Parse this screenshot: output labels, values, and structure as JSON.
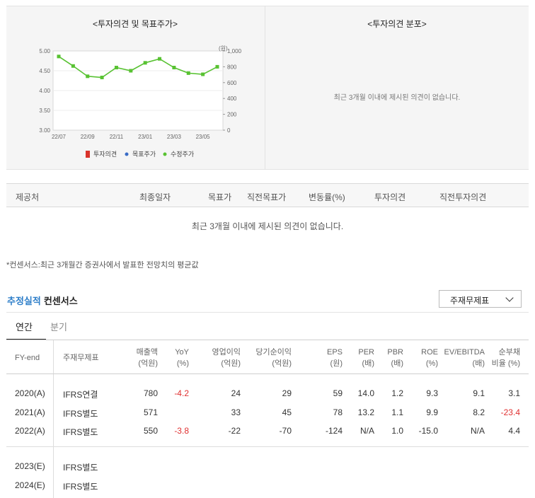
{
  "chart_panel": {
    "title": "<투자의견 및 목표주가>",
    "unit_label": "(원)",
    "legend": [
      {
        "label": "투자의견",
        "color": "#d9342b"
      },
      {
        "label": "목표주가",
        "color": "#3a6cc6"
      },
      {
        "label": "수정주가",
        "color": "#58c232"
      }
    ],
    "chart_data": {
      "type": "line",
      "x": [
        "22/07",
        "22/08",
        "22/09",
        "22/10",
        "22/11",
        "22/12",
        "23/01",
        "23/02",
        "23/03",
        "23/04",
        "23/05",
        "23/06"
      ],
      "x_tick_labels": [
        "22/07",
        "22/09",
        "22/11",
        "23/01",
        "23/03",
        "23/05"
      ],
      "left_axis": {
        "ticks": [
          "5.00",
          "4.50",
          "4.00",
          "3.50",
          "3.00"
        ],
        "range": [
          3.0,
          5.0
        ]
      },
      "right_axis": {
        "ticks": [
          "1,000",
          "800",
          "600",
          "400",
          "200",
          "0"
        ],
        "range": [
          0,
          1000
        ]
      },
      "series": [
        {
          "name": "수정주가",
          "axis": "right",
          "color": "#58c232",
          "values": [
            930,
            810,
            680,
            665,
            790,
            750,
            850,
            900,
            790,
            720,
            705,
            800
          ]
        }
      ]
    }
  },
  "dist_panel": {
    "title": "<투자의견 분포>",
    "empty_message": "최근 3개월 이내에 제시된 의견이 없습니다."
  },
  "opinion_table": {
    "headers": [
      "제공처",
      "최종일자",
      "목표가",
      "직전목표가",
      "변동률(%)",
      "투자의견",
      "직전투자의견"
    ],
    "empty_message": "최근 3개월 이내에 제시된 의견이 없습니다."
  },
  "footnote": "*컨센서스:최근 3개월간 증권사에서 발표한 전망치의 평균값",
  "section": {
    "title_accent": "추정실적",
    "title_rest": "컨센서스",
    "dropdown_value": "주재무제표"
  },
  "tabs": {
    "annual": "연간",
    "quarter": "분기"
  },
  "est_table": {
    "headers": [
      {
        "l1": "FY-end",
        "l2": ""
      },
      {
        "l1": "주재무제표",
        "l2": ""
      },
      {
        "l1": "매출액",
        "l2": "(억원)"
      },
      {
        "l1": "YoY",
        "l2": "(%)"
      },
      {
        "l1": "영업이익",
        "l2": "(억원)"
      },
      {
        "l1": "당기순이익",
        "l2": "(억원)"
      },
      {
        "l1": "EPS",
        "l2": "(원)"
      },
      {
        "l1": "PER",
        "l2": "(배)"
      },
      {
        "l1": "PBR",
        "l2": "(배)"
      },
      {
        "l1": "ROE",
        "l2": "(%)"
      },
      {
        "l1": "EV/EBITDA",
        "l2": "(배)"
      },
      {
        "l1": "순부채",
        "l2": "비율 (%)"
      }
    ],
    "rows": [
      {
        "fy": "2020(A)",
        "basis": "IFRS연결",
        "sales": "780",
        "yoy": "-4.2",
        "op": "24",
        "net": "29",
        "eps": "59",
        "per": "14.0",
        "pbr": "1.2",
        "roe": "9.3",
        "ev": "9.1",
        "debt": "3.1"
      },
      {
        "fy": "2021(A)",
        "basis": "IFRS별도",
        "sales": "571",
        "yoy": "",
        "op": "33",
        "net": "45",
        "eps": "78",
        "per": "13.2",
        "pbr": "1.1",
        "roe": "9.9",
        "ev": "8.2",
        "debt": "-23.4"
      },
      {
        "fy": "2022(A)",
        "basis": "IFRS별도",
        "sales": "550",
        "yoy": "-3.8",
        "op": "-22",
        "net": "-70",
        "eps": "-124",
        "per": "N/A",
        "pbr": "1.0",
        "roe": "-15.0",
        "ev": "N/A",
        "debt": "4.4"
      },
      {
        "fy": "2023(E)",
        "basis": "IFRS별도",
        "sales": "",
        "yoy": "",
        "op": "",
        "net": "",
        "eps": "",
        "per": "",
        "pbr": "",
        "roe": "",
        "ev": "",
        "debt": ""
      },
      {
        "fy": "2024(E)",
        "basis": "IFRS별도",
        "sales": "",
        "yoy": "",
        "op": "",
        "net": "",
        "eps": "",
        "per": "",
        "pbr": "",
        "roe": "",
        "ev": "",
        "debt": ""
      }
    ]
  }
}
